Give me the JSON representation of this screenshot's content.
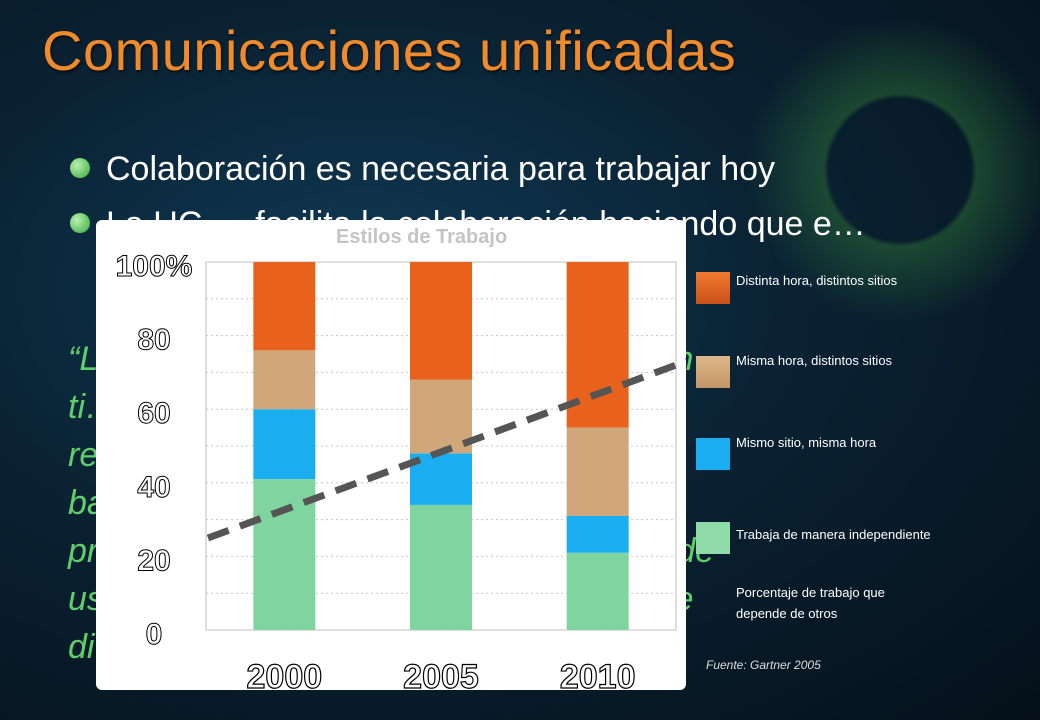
{
  "slide": {
    "title": "Comunicaciones unificadas",
    "bullets": [
      "Colaboración es necesaria para trabajar hoy",
      "La UC … facilita la colaboración haciendo que e…"
    ],
    "quote": "“L…                                          aciones en\nti…                                          ún los\nre…                                          e negocio,\nba…\npr…                                          periencia de\nus…                                          lo largo de\ndi…                                          medios.”"
  },
  "chart_data": {
    "type": "bar",
    "stacked": true,
    "title": "Estilos de Trabajo",
    "categories": [
      "2000",
      "2005",
      "2010"
    ],
    "y_ticks": [
      "100%",
      "80",
      "60",
      "40",
      "20",
      "0"
    ],
    "ylim": [
      0,
      100
    ],
    "series": [
      {
        "name": "Trabaja de manera independiente",
        "color": "#80d4a0",
        "values": [
          41,
          34,
          21
        ]
      },
      {
        "name": "Mismo sitio, misma hora",
        "color": "#1aaef0",
        "values": [
          19,
          14,
          10
        ]
      },
      {
        "name": "Misma hora, distintos sitios",
        "color": "#cfa77a",
        "values": [
          16,
          20,
          24
        ]
      },
      {
        "name": "Distinta hora, distintos sitios",
        "color": "#e8621e",
        "values": [
          24,
          32,
          45
        ]
      }
    ],
    "trend_label": "Porcentaje de trabajo que depende de otros",
    "source": "Fuente: Gartner 2005"
  }
}
